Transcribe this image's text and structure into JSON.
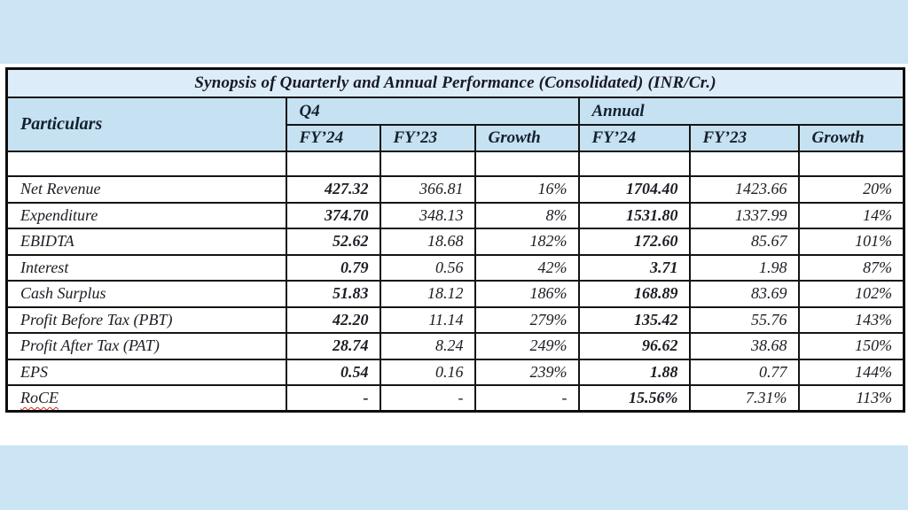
{
  "page": {
    "background_strip_color": "#cbe5f4",
    "panel_color": "#ffffff"
  },
  "table": {
    "title": "Synopsis of Quarterly and Annual Performance (Consolidated) (INR/Cr.)",
    "colors": {
      "title_row_bg": "#dcecf8",
      "header_row_bg": "#c6e2f2",
      "border": "#141414",
      "text": "#1c1c24",
      "spellcheck_underline": "#cf2a1e"
    },
    "columns": {
      "particulars_label": "Particulars",
      "groups": [
        {
          "label": "Q4",
          "sub": [
            "FY’24",
            "FY’23",
            "Growth"
          ]
        },
        {
          "label": "Annual",
          "sub": [
            "FY’24",
            "FY’23",
            "Growth"
          ]
        }
      ]
    },
    "rows": [
      {
        "label": "Net Revenue",
        "q4": [
          "427.32",
          "366.81",
          "16%"
        ],
        "annual": [
          "1704.40",
          "1423.66",
          "20%"
        ]
      },
      {
        "label": "Expenditure",
        "q4": [
          "374.70",
          "348.13",
          "8%"
        ],
        "annual": [
          "1531.80",
          "1337.99",
          "14%"
        ]
      },
      {
        "label": "EBIDTA",
        "q4": [
          "52.62",
          "18.68",
          "182%"
        ],
        "annual": [
          "172.60",
          "85.67",
          "101%"
        ]
      },
      {
        "label": "Interest",
        "q4": [
          "0.79",
          "0.56",
          "42%"
        ],
        "annual": [
          "3.71",
          "1.98",
          "87%"
        ]
      },
      {
        "label": "Cash Surplus",
        "q4": [
          "51.83",
          "18.12",
          "186%"
        ],
        "annual": [
          "168.89",
          "83.69",
          "102%"
        ]
      },
      {
        "label": "Profit Before Tax (PBT)",
        "q4": [
          "42.20",
          "11.14",
          "279%"
        ],
        "annual": [
          "135.42",
          "55.76",
          "143%"
        ]
      },
      {
        "label": "Profit After Tax (PAT)",
        "q4": [
          "28.74",
          "8.24",
          "249%"
        ],
        "annual": [
          "96.62",
          "38.68",
          "150%"
        ]
      },
      {
        "label": "EPS",
        "q4": [
          "0.54",
          "0.16",
          "239%"
        ],
        "annual": [
          "1.88",
          "0.77",
          "144%"
        ]
      },
      {
        "label": "RoCE",
        "q4": [
          "-",
          "-",
          "-"
        ],
        "annual": [
          "15.56%",
          "7.31%",
          "113%"
        ],
        "spellcheck_underline": true
      }
    ]
  }
}
